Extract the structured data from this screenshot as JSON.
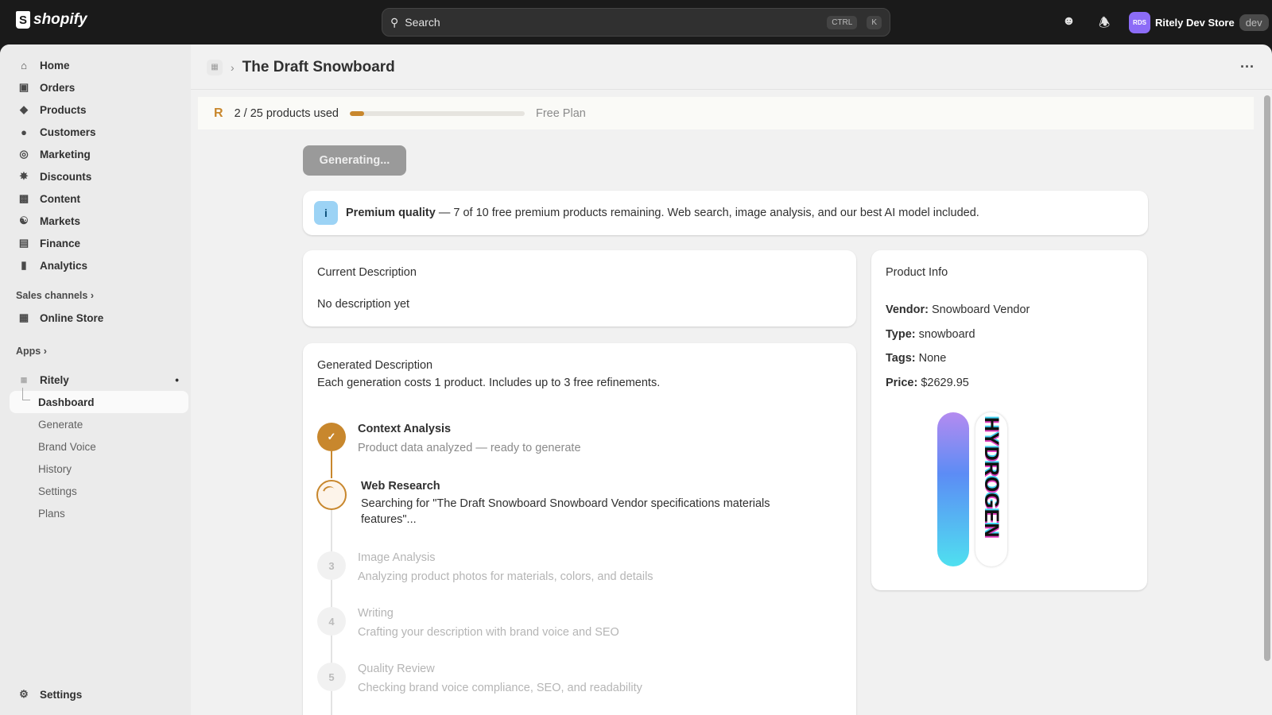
{
  "topbar": {
    "logo": "shopify",
    "search_placeholder": "Search",
    "kbd1": "CTRL",
    "kbd2": "K",
    "store_initials": "RDS",
    "store_name": "Ritely Dev Store",
    "store_badge": "dev"
  },
  "sidebar": {
    "items": [
      {
        "label": "Home",
        "icon": "home-icon"
      },
      {
        "label": "Orders",
        "icon": "inbox-icon"
      },
      {
        "label": "Products",
        "icon": "tag-icon"
      },
      {
        "label": "Customers",
        "icon": "person-icon"
      },
      {
        "label": "Marketing",
        "icon": "target-icon"
      },
      {
        "label": "Discounts",
        "icon": "discount-icon"
      },
      {
        "label": "Content",
        "icon": "content-icon"
      },
      {
        "label": "Markets",
        "icon": "globe-icon"
      },
      {
        "label": "Finance",
        "icon": "bank-icon"
      },
      {
        "label": "Analytics",
        "icon": "bar-chart-icon"
      }
    ],
    "sales_channels": "Sales channels",
    "online_store": "Online Store",
    "apps": "Apps",
    "app_name": "Ritely",
    "app_items": [
      "Dashboard",
      "Generate",
      "Brand Voice",
      "History",
      "Settings",
      "Plans"
    ],
    "active": "Dashboard",
    "settings": "Settings"
  },
  "page": {
    "title": "The Draft Snowboard"
  },
  "usage": {
    "logo": "R",
    "text": "2 / 25 products used",
    "used": 2,
    "limit": 25,
    "plan": "Free Plan",
    "accent": "#c8872d"
  },
  "generate_button": "Generating...",
  "notice": {
    "bold": "Premium quality",
    "text": " — 7 of 10 free premium products remaining. Web search, image analysis, and our best AI model included."
  },
  "current": {
    "title": "Current Description",
    "body": "No description yet"
  },
  "generated": {
    "title": "Generated Description",
    "subtitle": "Each generation costs 1 product. Includes up to 3 free refinements.",
    "steps": [
      {
        "title": "Context Analysis",
        "desc": "Product data analyzed — ready to generate",
        "status": "done"
      },
      {
        "title": "Web Research",
        "desc": "Searching for \"The Draft Snowboard Snowboard Vendor specifications materials features\"...",
        "status": "active"
      },
      {
        "num": "3",
        "title": "Image Analysis",
        "desc": "Analyzing product photos for materials, colors, and details",
        "status": "pending"
      },
      {
        "num": "4",
        "title": "Writing",
        "desc": "Crafting your description with brand voice and SEO",
        "status": "pending"
      },
      {
        "num": "5",
        "title": "Quality Review",
        "desc": "Checking brand voice compliance, SEO, and readability",
        "status": "pending"
      }
    ]
  },
  "product_info": {
    "title": "Product Info",
    "vendor_label": "Vendor:",
    "vendor": "Snowboard Vendor",
    "type_label": "Type:",
    "type": "snowboard",
    "tags_label": "Tags:",
    "tags": "None",
    "price_label": "Price:",
    "price": "$2629.95",
    "image_text": "HYDROGEN"
  }
}
